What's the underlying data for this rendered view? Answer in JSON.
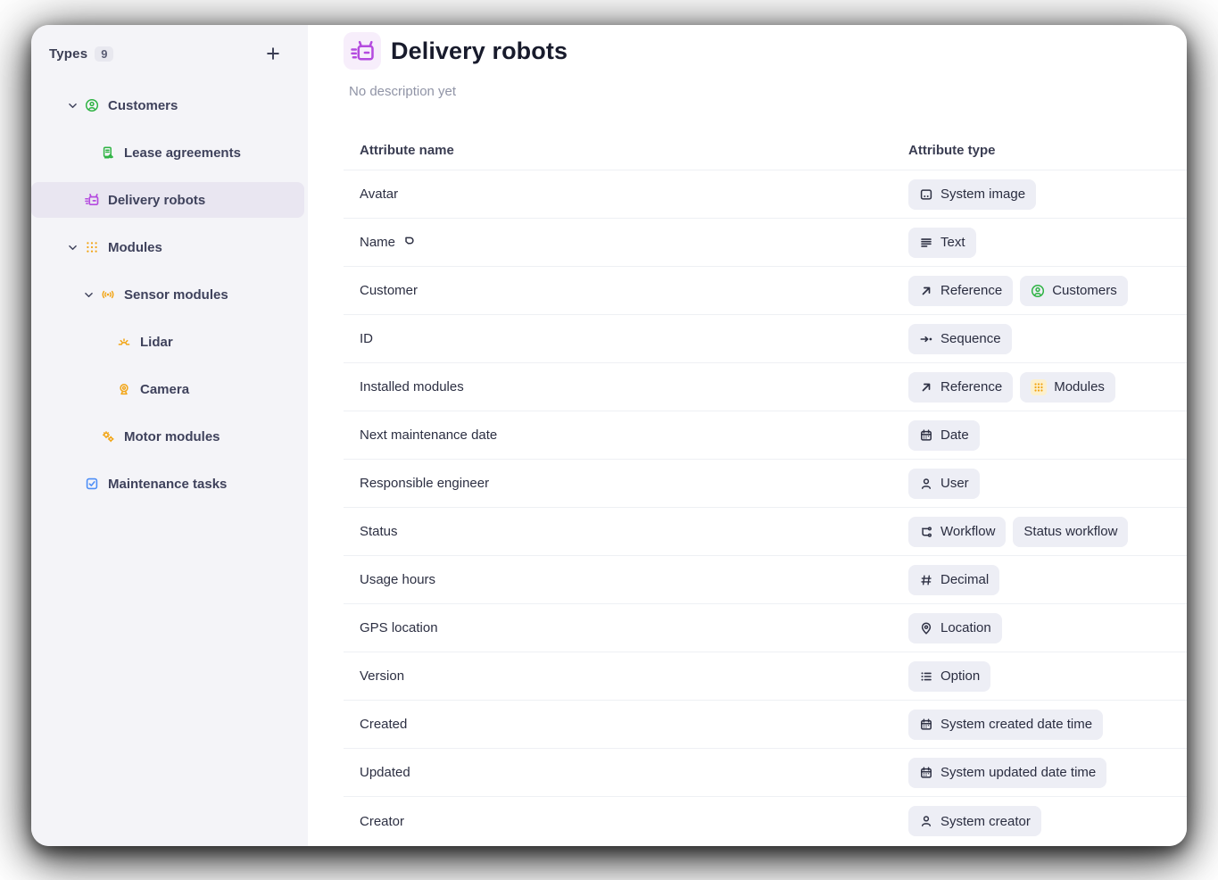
{
  "colors": {
    "green": "#2fb344",
    "orange": "#f2a516",
    "blue": "#4d8ef7",
    "purple": "#b44bdf",
    "dark": "#2e3144",
    "sidebar_bg": "#f4f4f8",
    "selected_bg": "#e9e6f1",
    "badge_bg": "#edeef5"
  },
  "sidebar": {
    "header": {
      "title": "Types",
      "count": "9",
      "add_icon": "plus-icon"
    },
    "items": [
      {
        "label": "Customers",
        "icon": "user-circle-icon",
        "color": "#2fb344",
        "depth": 0,
        "chevron": true,
        "selected": false
      },
      {
        "label": "Lease agreements",
        "icon": "lease-document-icon",
        "color": "#2fb344",
        "depth": 1,
        "chevron": false,
        "selected": false
      },
      {
        "label": "Delivery robots",
        "icon": "robot-icon",
        "color": "#b44bdf",
        "depth": 0,
        "chevron": false,
        "selected": true
      },
      {
        "label": "Modules",
        "icon": "grid-dots-icon",
        "color": "#f2a516",
        "depth": 0,
        "chevron": true,
        "selected": false
      },
      {
        "label": "Sensor modules",
        "icon": "broadcast-icon",
        "color": "#f2a516",
        "depth": 1,
        "chevron": true,
        "selected": false
      },
      {
        "label": "Lidar",
        "icon": "lidar-icon",
        "color": "#f2a516",
        "depth": 2,
        "chevron": false,
        "selected": false
      },
      {
        "label": "Camera",
        "icon": "camera-icon",
        "color": "#f2a516",
        "depth": 2,
        "chevron": false,
        "selected": false
      },
      {
        "label": "Motor modules",
        "icon": "gears-icon",
        "color": "#f2a516",
        "depth": 1,
        "chevron": false,
        "selected": false
      },
      {
        "label": "Maintenance tasks",
        "icon": "checkbox-icon",
        "color": "#4d8ef7",
        "depth": 0,
        "chevron": false,
        "selected": false
      }
    ]
  },
  "main": {
    "title": "Delivery robots",
    "title_icon": "robot-icon",
    "description": "No description yet",
    "table": {
      "columns": [
        "Attribute name",
        "Attribute type"
      ],
      "rows": [
        {
          "name": "Avatar",
          "badges": [
            {
              "label": "System image",
              "icon": "image-icon"
            }
          ]
        },
        {
          "name": "Name",
          "name_icon": "name-tag-icon",
          "badges": [
            {
              "label": "Text",
              "icon": "text-icon"
            }
          ]
        },
        {
          "name": "Customer",
          "badges": [
            {
              "label": "Reference",
              "icon": "reference-arrow-icon"
            },
            {
              "label": "Customers",
              "icon": "user-circle-icon",
              "icon_color": "#2fb344"
            }
          ]
        },
        {
          "name": "ID",
          "badges": [
            {
              "label": "Sequence",
              "icon": "sequence-icon"
            }
          ]
        },
        {
          "name": "Installed modules",
          "badges": [
            {
              "label": "Reference",
              "icon": "reference-arrow-icon"
            },
            {
              "label": "Modules",
              "icon": "grid-dots-icon",
              "icon_color": "#f2a516",
              "icon_tile": true
            }
          ]
        },
        {
          "name": "Next maintenance date",
          "badges": [
            {
              "label": "Date",
              "icon": "calendar-icon"
            }
          ]
        },
        {
          "name": "Responsible engineer",
          "badges": [
            {
              "label": "User",
              "icon": "person-icon"
            }
          ]
        },
        {
          "name": "Status",
          "badges": [
            {
              "label": "Workflow",
              "icon": "workflow-icon"
            },
            {
              "label": "Status workflow"
            }
          ]
        },
        {
          "name": "Usage hours",
          "badges": [
            {
              "label": "Decimal",
              "icon": "hash-icon"
            }
          ]
        },
        {
          "name": "GPS location",
          "badges": [
            {
              "label": "Location",
              "icon": "location-pin-icon"
            }
          ]
        },
        {
          "name": "Version",
          "badges": [
            {
              "label": "Option",
              "icon": "option-list-icon"
            }
          ]
        },
        {
          "name": "Created",
          "badges": [
            {
              "label": "System created date time",
              "icon": "calendar-icon"
            }
          ]
        },
        {
          "name": "Updated",
          "badges": [
            {
              "label": "System updated date time",
              "icon": "calendar-icon"
            }
          ]
        },
        {
          "name": "Creator",
          "badges": [
            {
              "label": "System creator",
              "icon": "person-icon"
            }
          ]
        }
      ]
    }
  }
}
